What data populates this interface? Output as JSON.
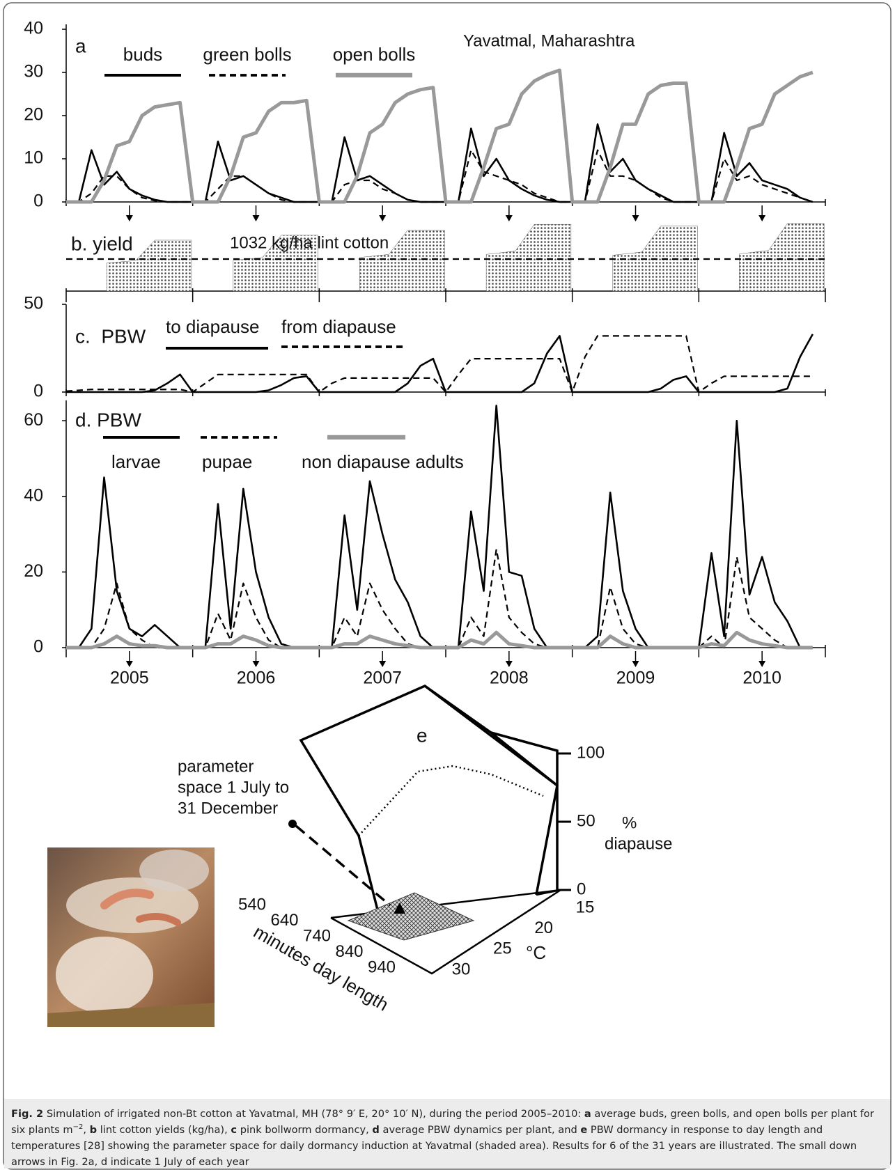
{
  "chart_data": [
    {
      "type": "line",
      "title": "a",
      "annotation": "Yavatmal, Maharashtra",
      "xlim": [
        2005,
        2011
      ],
      "ylim": [
        0,
        40
      ],
      "yticks": [
        0,
        10,
        20,
        30,
        40
      ],
      "minorticks": [
        2005,
        2006,
        2007,
        2008,
        2009,
        2010,
        2011
      ],
      "arrows": [
        2005.5,
        2006.5,
        2007.5,
        2008.5,
        2009.5,
        2010.5
      ],
      "x": [
        2005,
        2005.1,
        2005.2,
        2005.3,
        2005.4,
        2005.5,
        2005.6,
        2005.7,
        2005.8,
        2005.9,
        2006,
        2006.1,
        2006.2,
        2006.3,
        2006.4,
        2006.5,
        2006.6,
        2006.7,
        2006.8,
        2006.9,
        2007,
        2007.1,
        2007.2,
        2007.3,
        2007.4,
        2007.5,
        2007.6,
        2007.7,
        2007.8,
        2007.9,
        2008,
        2008.1,
        2008.2,
        2008.3,
        2008.4,
        2008.5,
        2008.6,
        2008.7,
        2008.8,
        2008.9,
        2009,
        2009.1,
        2009.2,
        2009.3,
        2009.4,
        2009.5,
        2009.6,
        2009.7,
        2009.8,
        2009.9,
        2010,
        2010.1,
        2010.2,
        2010.3,
        2010.4,
        2010.5,
        2010.6,
        2010.7,
        2010.8,
        2010.9
      ],
      "series": [
        {
          "name": "buds",
          "color": "#000000",
          "line_style": "solid",
          "values": [
            0,
            0,
            12,
            4,
            7,
            3,
            1.5,
            0.5,
            0,
            0,
            0,
            0,
            14,
            5,
            6,
            4,
            2,
            1,
            0,
            0,
            0,
            0,
            15,
            5,
            6,
            4,
            2,
            0.5,
            0,
            0,
            0,
            0,
            17,
            6,
            10,
            5,
            3,
            1.5,
            0.5,
            0,
            0,
            0,
            18,
            7,
            10,
            5,
            3,
            1.5,
            0,
            0,
            0,
            0,
            16,
            6,
            9,
            5,
            4,
            3,
            1,
            0
          ]
        },
        {
          "name": "green bolls",
          "color": "#000000",
          "line_style": "dashed",
          "values": [
            0,
            0,
            2,
            6,
            6,
            3,
            1,
            0.3,
            0,
            0,
            0,
            0,
            3,
            6,
            6,
            4,
            2,
            0.5,
            0,
            0,
            0,
            0,
            4,
            5,
            5,
            3,
            2,
            0.5,
            0,
            0,
            0,
            0,
            12,
            7,
            6,
            5,
            4,
            2,
            1,
            0,
            0,
            0,
            12,
            6,
            6,
            5,
            3,
            1,
            0,
            0,
            0,
            0,
            10,
            5,
            6,
            4,
            3,
            2,
            1,
            0
          ]
        },
        {
          "name": "open bolls",
          "color": "#999999",
          "line_style": "thick",
          "values": [
            0,
            0,
            0,
            5,
            13,
            14,
            20,
            22,
            22.5,
            23,
            0,
            0,
            0,
            6,
            15,
            16,
            21,
            23,
            23,
            23.5,
            0,
            0,
            0,
            6,
            16,
            18,
            23,
            25,
            26,
            26.5,
            0,
            0,
            0,
            8,
            17,
            18,
            25,
            28,
            29.5,
            30.5,
            0,
            0,
            0,
            8,
            18,
            18,
            25,
            27,
            27.5,
            27.5,
            0,
            0,
            0,
            8,
            17,
            18,
            25,
            27,
            29,
            30
          ]
        }
      ]
    },
    {
      "type": "area",
      "title": "b. yield",
      "reference": 1032,
      "reference_label": "1032 kg/ha lint cotton",
      "xlim": [
        2005,
        2011
      ],
      "ylim": [
        0,
        2200
      ],
      "color": "#555555",
      "minorticks": [
        2005,
        2006,
        2007,
        2008,
        2009,
        2010,
        2011
      ],
      "x": [
        2005.5,
        2006.5,
        2007.5,
        2008.5,
        2009.5,
        2010.5
      ],
      "values": [
        1640,
        1800,
        1970,
        2150,
        2100,
        2180
      ]
    },
    {
      "type": "line",
      "title": "c.  PBW",
      "xlim": [
        2005,
        2011
      ],
      "ylim": [
        0,
        50
      ],
      "yticks": [
        0,
        50
      ],
      "minorticks": [
        2005,
        2006,
        2007,
        2008,
        2009,
        2010,
        2011
      ],
      "x": [
        2005,
        2005.1,
        2005.2,
        2005.3,
        2005.4,
        2005.5,
        2005.6,
        2005.7,
        2005.8,
        2005.9,
        2006,
        2006.1,
        2006.2,
        2006.3,
        2006.4,
        2006.5,
        2006.6,
        2006.7,
        2006.8,
        2006.9,
        2007,
        2007.1,
        2007.2,
        2007.3,
        2007.4,
        2007.5,
        2007.6,
        2007.7,
        2007.8,
        2007.9,
        2008,
        2008.1,
        2008.2,
        2008.3,
        2008.4,
        2008.5,
        2008.6,
        2008.7,
        2008.8,
        2008.9,
        2009,
        2009.1,
        2009.2,
        2009.3,
        2009.4,
        2009.5,
        2009.6,
        2009.7,
        2009.8,
        2009.9,
        2010,
        2010.1,
        2010.2,
        2010.3,
        2010.4,
        2010.5,
        2010.6,
        2010.7,
        2010.8,
        2010.9
      ],
      "series": [
        {
          "name": "to diapause",
          "color": "#000000",
          "line_style": "solid",
          "values": [
            0,
            0,
            0,
            0,
            0,
            0,
            0,
            1,
            5,
            10,
            0,
            0,
            0,
            0,
            0,
            0,
            1,
            4,
            8,
            9,
            0,
            0,
            0,
            0,
            0,
            0,
            0,
            5,
            15,
            19,
            0,
            0,
            0,
            0,
            0,
            0,
            0,
            5,
            22,
            32,
            0,
            0,
            0,
            0,
            0,
            0,
            0,
            2,
            7,
            9,
            0,
            0,
            0,
            0,
            0,
            0,
            0,
            2,
            20,
            33
          ]
        },
        {
          "name": "from diapause",
          "color": "#000000",
          "line_style": "dashed",
          "values": [
            0.5,
            1,
            1.5,
            1.5,
            1.5,
            1.5,
            1.5,
            1.5,
            1.5,
            1.5,
            0,
            5,
            10,
            10,
            10,
            10,
            10,
            10,
            10,
            10,
            0,
            5,
            8,
            8,
            8,
            8,
            8,
            8,
            8,
            8,
            0,
            10,
            19,
            19,
            19,
            19,
            19,
            19,
            19,
            19,
            0,
            20,
            32,
            32,
            32,
            32,
            32,
            32,
            32,
            32,
            0,
            5,
            9,
            9,
            9,
            9,
            9,
            9,
            9,
            9
          ]
        }
      ]
    },
    {
      "type": "line",
      "title": "d. PBW",
      "xlim": [
        2005,
        2011
      ],
      "ylim": [
        0,
        65
      ],
      "yticks": [
        0,
        20,
        40,
        60
      ],
      "minorticks": [
        2005,
        2006,
        2007,
        2008,
        2009,
        2010,
        2011
      ],
      "xticks": [
        {
          "value": 2005.5,
          "label": "2005"
        },
        {
          "value": 2006.5,
          "label": "2006"
        },
        {
          "value": 2007.5,
          "label": "2007"
        },
        {
          "value": 2008.5,
          "label": "2008"
        },
        {
          "value": 2009.5,
          "label": "2009"
        },
        {
          "value": 2010.5,
          "label": "2010"
        }
      ],
      "x": [
        2005,
        2005.1,
        2005.2,
        2005.3,
        2005.4,
        2005.5,
        2005.6,
        2005.7,
        2005.8,
        2005.9,
        2006,
        2006.1,
        2006.2,
        2006.3,
        2006.4,
        2006.5,
        2006.6,
        2006.7,
        2006.8,
        2006.9,
        2007,
        2007.1,
        2007.2,
        2007.3,
        2007.4,
        2007.5,
        2007.6,
        2007.7,
        2007.8,
        2007.9,
        2008,
        2008.1,
        2008.2,
        2008.3,
        2008.4,
        2008.5,
        2008.6,
        2008.7,
        2008.8,
        2008.9,
        2009,
        2009.1,
        2009.2,
        2009.3,
        2009.4,
        2009.5,
        2009.6,
        2009.7,
        2009.8,
        2009.9,
        2010,
        2010.1,
        2010.2,
        2010.3,
        2010.4,
        2010.5,
        2010.6,
        2010.7,
        2010.8,
        2010.9
      ],
      "series": [
        {
          "name": "larvae",
          "color": "#000000",
          "line_style": "solid",
          "values": [
            0,
            0,
            5,
            45,
            15,
            5,
            3,
            6,
            3,
            0,
            0,
            0,
            38,
            5,
            42,
            20,
            8,
            1,
            0,
            0,
            0,
            0,
            35,
            10,
            44,
            30,
            18,
            12,
            3,
            0,
            0,
            0,
            36,
            15,
            64,
            20,
            19,
            5,
            0,
            0,
            0,
            0,
            3,
            41,
            15,
            5,
            0,
            0,
            0,
            0,
            0,
            25,
            3,
            60,
            14,
            24,
            12,
            7,
            0,
            0
          ]
        },
        {
          "name": "pupae",
          "color": "#000000",
          "line_style": "dashed",
          "values": [
            0,
            0,
            0,
            5,
            17,
            5,
            2,
            0,
            0,
            0,
            0,
            0,
            9,
            2,
            17,
            8,
            2,
            0,
            0,
            0,
            0,
            0,
            8,
            3,
            17,
            10,
            5,
            1,
            0,
            0,
            0,
            0,
            8,
            3,
            26,
            8,
            4,
            1,
            0,
            0,
            0,
            0,
            0,
            16,
            5,
            1,
            0,
            0,
            0,
            0,
            0,
            3,
            0,
            24,
            8,
            5,
            2,
            0,
            0,
            0
          ]
        },
        {
          "name": "non diapause adults",
          "color": "#999999",
          "line_style": "thick",
          "values": [
            0,
            0,
            0,
            1,
            3,
            1,
            0.5,
            0.5,
            0,
            0,
            0,
            0,
            1,
            1,
            3,
            2,
            0.5,
            0,
            0,
            0,
            0,
            0,
            1,
            1,
            3,
            2,
            1,
            0.5,
            0,
            0,
            0,
            0,
            2,
            1,
            4,
            1,
            0.5,
            0,
            0,
            0,
            0,
            0,
            0,
            3,
            1,
            0,
            0,
            0,
            0,
            0,
            0,
            1,
            0.5,
            4,
            2,
            1,
            0.5,
            0,
            0,
            0
          ]
        }
      ]
    },
    {
      "type": "surface3d",
      "title": "e",
      "zlim": [
        0,
        100
      ],
      "zticks": [
        0,
        50,
        100
      ],
      "zlabel": [
        "%",
        "diapause"
      ],
      "templim": [
        15,
        30
      ],
      "tempticks": [
        15,
        20,
        25,
        30
      ],
      "templabel": "°C",
      "daylim": [
        540,
        940
      ],
      "dayticks": [
        540,
        640,
        740,
        840,
        940
      ],
      "daylabel": "minutes day length",
      "annotation": [
        "parameter",
        "space 1 July to",
        "31 December"
      ]
    }
  ],
  "caption": [
    {
      "text": "Fig. 2",
      "bold": true
    },
    {
      "text": " Simulation of irrigated non-Bt cotton at Yavatmal, MH (78° 9′ E, 20° 10′ N), during the period 2005–2010: "
    },
    {
      "text": "a",
      "bold": true
    },
    {
      "text": " average buds, green bolls, and open bolls per plant for six plants m"
    },
    {
      "text": "−2",
      "sup": true
    },
    {
      "text": ", "
    },
    {
      "text": "b",
      "bold": true
    },
    {
      "text": " lint cotton yields (kg/ha), "
    },
    {
      "text": "c",
      "bold": true
    },
    {
      "text": " pink bollworm dormancy, "
    },
    {
      "text": "d",
      "bold": true
    },
    {
      "text": " average PBW dynamics per plant, and "
    },
    {
      "text": "e",
      "bold": true
    },
    {
      "text": " PBW dormancy in response to day length and temperatures [28] showing the parameter space for daily dormancy induction at Yavatmal (shaded area). Results for 6 of the 31 years are illustrated. The small down arrows in Fig. 2a, d indicate 1 July of each year"
    }
  ]
}
